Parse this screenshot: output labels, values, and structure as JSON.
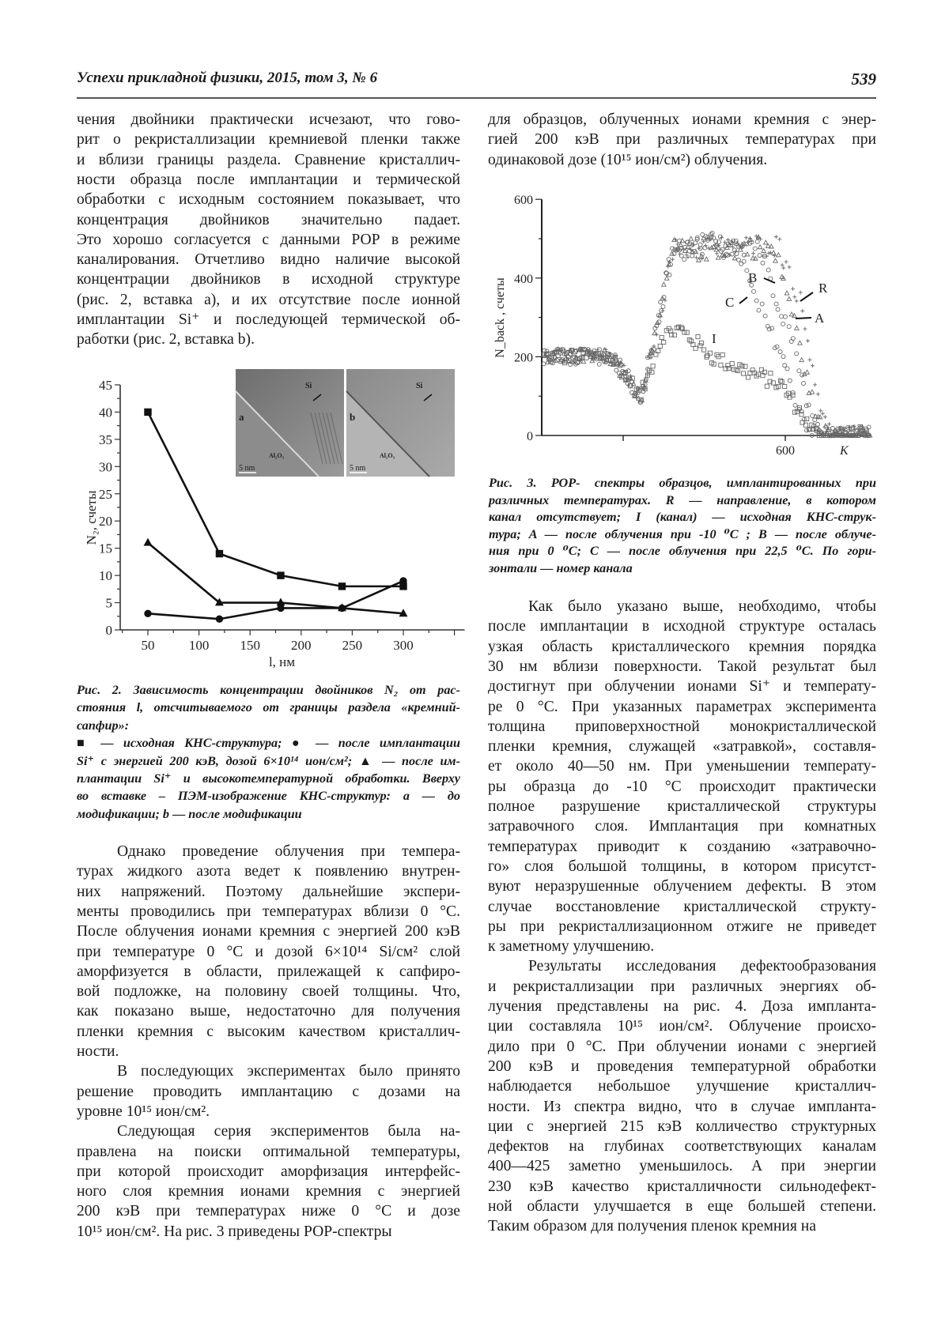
{
  "header": {
    "journal": "Успехи прикладной физики, 2015, том 3, № 6",
    "page_number": "539"
  },
  "left_top": [
    {
      "indent": false,
      "lines": [
        "чения двойники практически исчезают, что гово-",
        "рит о рекристаллизации кремниевой пленки также",
        "и вблизи границы раздела. Сравнение кристаллич-",
        "ности образца после имплантации и термической",
        "обработки с исходным состоянием показывает, что",
        "концентрация двойников значительно падает.",
        "Это хорошо согласуется с данными РОР в режиме",
        "каналирования. Отчетливо видно наличие высокой",
        "концентрации двойников в исходной структуре",
        "(рис. 2, вставка a), и их отсутствие после ионной",
        "имплантации Si⁺ и последующей термической об-",
        "работки (рис. 2, вставка b)."
      ]
    }
  ],
  "fig2_caption": [
    {
      "indent": false,
      "lines": [
        "Рис. 2. Зависимость концентрации двойников N₂ от рас-",
        "стояния l, отсчитываемого от границы раздела «кремний-",
        "сапфир»:"
      ]
    },
    {
      "indent": false,
      "lines": [
        "■ — исходная КНС-структура; ● — после имплантации",
        "Si⁺ с энергией 200 кэВ, дозой 6×10¹⁴ ион/см²; ▲ — после им-",
        "плантации Si⁺ и высокотемпературной обработки. Вверху",
        "во вставке – ПЭМ-изображение КНС-структур: a — до",
        "модификации; b — после модификации"
      ]
    }
  ],
  "left_bottom": [
    {
      "indent": true,
      "lines": [
        "Однако проведение облучения при темпера-",
        "турах жидкого азота ведет к появлению внутрен-",
        "них напряжений. Поэтому дальнейшие экспери-",
        "менты проводились при температурах вблизи 0 °C.",
        "После облучения ионами кремния с энергией 200 кэВ",
        "при температуре 0 °C и дозой 6×10¹⁴ Si/см² слой",
        "аморфизуется в области, прилежащей к сапфиро-",
        "вой подложке, на половину своей толщины. Что,",
        "как показано выше, недостаточно для получения",
        "пленки кремния с высоким качеством кристаллич-",
        "ности."
      ]
    },
    {
      "indent": true,
      "lines": [
        "В последующих экспериментах было принято",
        "решение проводить имплантацию с дозами на",
        "уровне 10¹⁵ ион/см²."
      ]
    },
    {
      "indent": true,
      "lines": [
        "Следующая серия экспериментов была на-",
        "правлена на поиски оптимальной температуры,",
        "при которой происходит аморфизация интерфейс-",
        "ного слоя кремния ионами кремния с энергией",
        "200 кэВ при температурах ниже 0 °C и дозе",
        "10¹⁵ ион/см². На рис. 3 приведены РОР-спектры"
      ]
    }
  ],
  "right_top": [
    {
      "indent": false,
      "lines": [
        "для образцов, облученных ионами кремния с энер-",
        "гией 200 кэВ при различных температурах при",
        "одинаковой дозе (10¹⁵ ион/см²) облучения."
      ]
    }
  ],
  "fig3_caption": [
    {
      "indent": false,
      "lines": [
        "Рис. 3. РОР- спектры образцов, имплантированных при",
        "различных температурах. R — направление, в котором",
        "канал отсутствует; I (канал) — исходная КНС-струк-",
        "тура; A — после облучения при -10 ⁰C ; B — после облуче-",
        "ния при 0 ⁰C; C — после облучения при 22,5 ⁰C. По гори-",
        "зонтали — номер канала"
      ]
    }
  ],
  "right_bottom": [
    {
      "indent": true,
      "lines": [
        "Как было указано выше, необходимо, чтобы",
        "после имплантации в исходной структуре осталась",
        "узкая область кристаллического кремния порядка",
        "30 нм вблизи поверхности. Такой результат был",
        "достигнут при облучении ионами Si⁺ и температу-",
        "ре 0 °C. При указанных параметрах эксперимента",
        "толщина приповерхностной монокристаллической",
        "пленки кремния, служащей «затравкой», составля-",
        "ет около 40—50 нм. При уменьшении температу-",
        "ры образца до -10 °C происходит практически",
        "полное разрушение кристаллической структуры",
        "затравочного слоя. Имплантация при комнатных",
        "температурах приводит к созданию «затравочно-",
        "го» слоя большой толщины, в котором присутст-",
        "вуют неразрушенные облучением дефекты. В этом",
        "случае восстановление кристаллической структу-",
        "ры при рекристаллизационном отжиге не приведет",
        "к заметному улучшению."
      ]
    },
    {
      "indent": true,
      "lines": [
        "Результаты исследования дефектообразования",
        "и рекристаллизации при различных энергиях об-",
        "лучения представлены на рис. 4. Доза импланта-",
        "ции составляла 10¹⁵ ион/см². Облучение происхо-",
        "дило при 0 °C. При облучении ионами с энергией",
        "200 кэВ и проведения температурной обработки",
        "наблюдается небольшое улучшение кристаллич-",
        "ности. Из спектра видно, что в случае имплантa-",
        "ции с энергией 215 кэВ колличество структурных",
        "дефектов на глубинах соответствующих каналам",
        "400—425 заметно уменьшилось. А при энергии",
        "230 кэВ качество кристалличности сильнодефект-",
        "ной области улучшается в еще большей степени.",
        "Таким образом для получения пленок кремния на"
      ]
    }
  ],
  "fig2_insets": {
    "a": {
      "label": "a",
      "si": "Si",
      "substrate": "Al₂O₃",
      "scale": "5 nm"
    },
    "b": {
      "label": "b",
      "si": "Si",
      "substrate": "Al₂O₃",
      "scale": "5 nm"
    }
  },
  "chart_data": [
    {
      "type": "line",
      "xlabel": "l, нм",
      "ylabel": "N₂, счеты",
      "xlim": [
        25,
        360
      ],
      "ylim": [
        0,
        45
      ],
      "xticks": [
        50,
        100,
        150,
        200,
        250,
        300
      ],
      "yticks": [
        0,
        5,
        10,
        15,
        20,
        25,
        30,
        35,
        40,
        45
      ],
      "grid": false,
      "x": [
        50,
        120,
        180,
        240,
        300
      ],
      "series": [
        {
          "marker": "square",
          "values": [
            40,
            14,
            10,
            8,
            8
          ]
        },
        {
          "marker": "circle",
          "values": [
            3,
            2,
            4,
            4,
            9
          ]
        },
        {
          "marker": "triangle",
          "values": [
            16,
            5,
            5,
            4,
            3
          ]
        }
      ]
    },
    {
      "type": "scatter",
      "xlabel": "K",
      "ylabel": "N_back , счеты",
      "xlim": [
        300,
        706
      ],
      "ylim": [
        0,
        600
      ],
      "xticks": [
        400,
        600
      ],
      "xtick_labels": [
        "",
        "600"
      ],
      "yticks": [
        0,
        200,
        400,
        600
      ],
      "grid": false,
      "series": [
        {
          "name": "I",
          "marker": "square",
          "points": [
            [
              300,
              200
            ],
            [
              385,
              200
            ],
            [
              405,
              150
            ],
            [
              421,
              96
            ],
            [
              435,
              180
            ],
            [
              448,
              255
            ],
            [
              470,
              270
            ],
            [
              512,
              197
            ],
            [
              545,
              170
            ],
            [
              594,
              130
            ],
            [
              604,
              102
            ],
            [
              620,
              50
            ],
            [
              636,
              5
            ],
            [
              706,
              3
            ]
          ]
        },
        {
          "name": "C",
          "marker": "circle",
          "points": [
            [
              300,
              200
            ],
            [
              385,
              200
            ],
            [
              405,
              150
            ],
            [
              421,
              96
            ],
            [
              441,
              263
            ],
            [
              454,
              397
            ],
            [
              462,
              470
            ],
            [
              520,
              490
            ],
            [
              545,
              460
            ],
            [
              555,
              383
            ],
            [
              575,
              290
            ],
            [
              594,
              217
            ],
            [
              617,
              68
            ],
            [
              631,
              8
            ],
            [
              706,
              3
            ]
          ]
        },
        {
          "name": "B",
          "marker": "circle",
          "points": [
            [
              300,
              200
            ],
            [
              385,
              200
            ],
            [
              405,
              150
            ],
            [
              421,
              96
            ],
            [
              441,
              263
            ],
            [
              454,
              397
            ],
            [
              462,
              470
            ],
            [
              565,
              490
            ],
            [
              584,
              383
            ],
            [
              600,
              300
            ],
            [
              615,
              200
            ],
            [
              630,
              60
            ],
            [
              642,
              6
            ],
            [
              706,
              3
            ]
          ]
        },
        {
          "name": "A",
          "marker": "triangle",
          "points": [
            [
              300,
              200
            ],
            [
              385,
              200
            ],
            [
              405,
              150
            ],
            [
              421,
              96
            ],
            [
              441,
              263
            ],
            [
              454,
              397
            ],
            [
              462,
              470
            ],
            [
              580,
              480
            ],
            [
              595,
              420
            ],
            [
              610,
              300
            ],
            [
              625,
              160
            ],
            [
              640,
              40
            ],
            [
              650,
              6
            ],
            [
              706,
              3
            ]
          ]
        },
        {
          "name": "R",
          "marker": "plus",
          "points": [
            [
              300,
              200
            ],
            [
              385,
              200
            ],
            [
              405,
              150
            ],
            [
              421,
              96
            ],
            [
              441,
              263
            ],
            [
              454,
              397
            ],
            [
              462,
              470
            ],
            [
              590,
              485
            ],
            [
              605,
              420
            ],
            [
              617,
              347
            ],
            [
              632,
              200
            ],
            [
              645,
              60
            ],
            [
              655,
              6
            ],
            [
              706,
              3
            ]
          ]
        }
      ]
    }
  ]
}
